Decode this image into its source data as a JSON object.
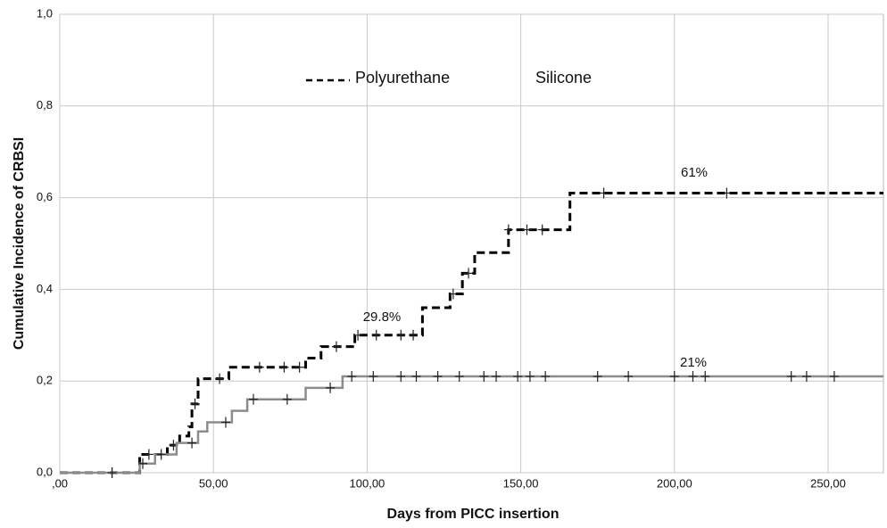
{
  "chart_data": {
    "type": "step",
    "x_label": "Days from PICC insertion",
    "y_label": "Cumulative Incidence of CRBSI",
    "xlim": [
      0,
      268
    ],
    "ylim": [
      0,
      1
    ],
    "xticks": [
      {
        "value": 0,
        "label": ",00"
      },
      {
        "value": 50,
        "label": "50,00"
      },
      {
        "value": 100,
        "label": "100,00"
      },
      {
        "value": 150,
        "label": "150,00"
      },
      {
        "value": 200,
        "label": "200,00"
      },
      {
        "value": 250,
        "label": "250,00"
      }
    ],
    "yticks": [
      {
        "value": 0,
        "label": "0,0"
      },
      {
        "value": 0.2,
        "label": "0,2"
      },
      {
        "value": 0.4,
        "label": "0,4"
      },
      {
        "value": 0.6,
        "label": "0,6"
      },
      {
        "value": 0.8,
        "label": "0,8"
      },
      {
        "value": 1,
        "label": "1,0"
      }
    ],
    "grid": true,
    "series": [
      {
        "name": "Polyurethane",
        "color": "#000000",
        "dash": true,
        "x": [
          0,
          26,
          35,
          39,
          42,
          43,
          45,
          55,
          80,
          85,
          96,
          118,
          127,
          131,
          135,
          146,
          166
        ],
        "values": [
          0,
          0.04,
          0.06,
          0.08,
          0.1,
          0.15,
          0.205,
          0.23,
          0.25,
          0.275,
          0.3,
          0.36,
          0.39,
          0.435,
          0.48,
          0.53,
          0.61
        ],
        "censored": [
          17,
          29,
          37,
          44,
          52,
          65,
          73,
          78,
          90,
          97,
          103,
          111,
          115,
          128,
          133,
          146,
          152,
          157,
          177,
          217
        ]
      },
      {
        "name": "Silicone",
        "color": "#8c8c8c",
        "dash": false,
        "x": [
          0,
          26,
          31,
          38,
          45,
          48,
          56,
          61,
          80,
          92
        ],
        "values": [
          0,
          0.02,
          0.04,
          0.065,
          0.09,
          0.11,
          0.135,
          0.16,
          0.185,
          0.21
        ],
        "censored": [
          17,
          27,
          33,
          43,
          54,
          63,
          74,
          88,
          95,
          102,
          111,
          116,
          123,
          130,
          138,
          142,
          149,
          153,
          158,
          175,
          185,
          200,
          206,
          210,
          238,
          243,
          252
        ]
      }
    ],
    "annotations": [
      "29.8%",
      "61%",
      "21%"
    ]
  }
}
